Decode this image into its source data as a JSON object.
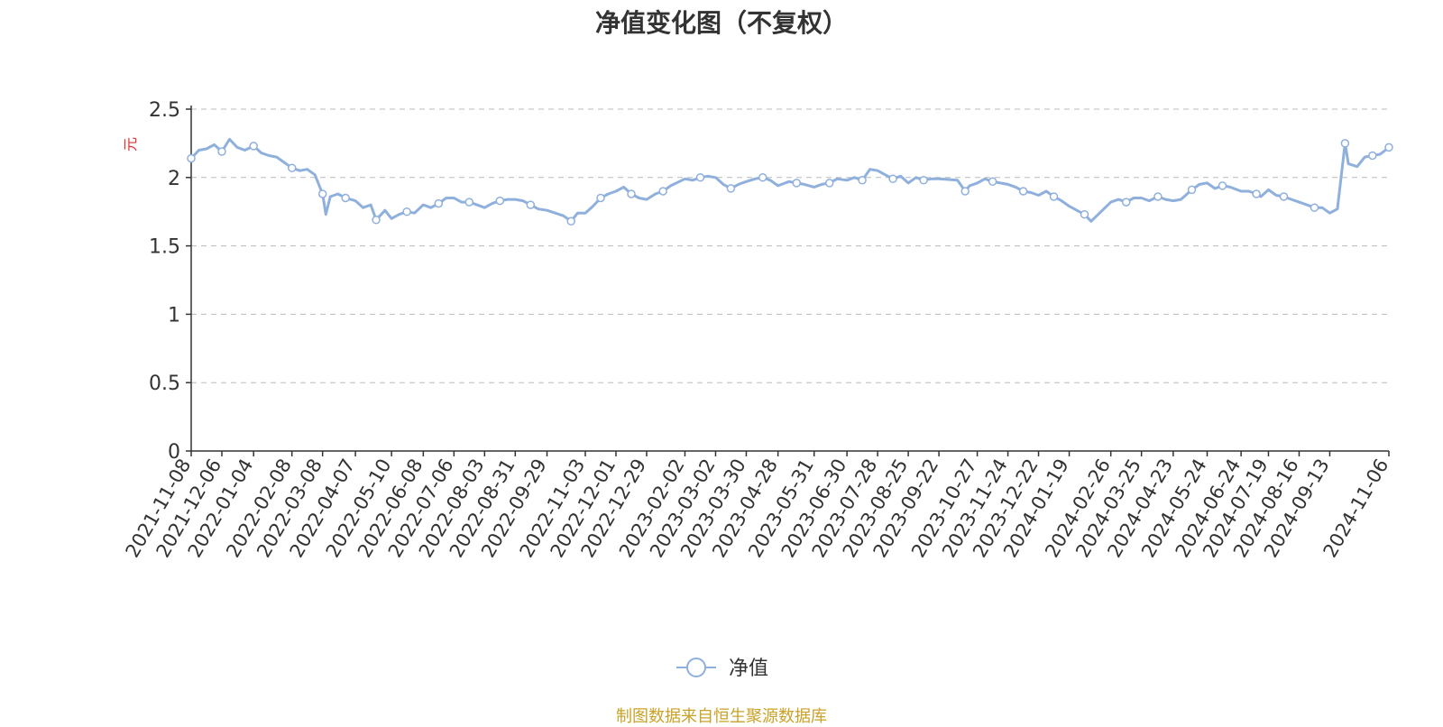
{
  "chart_data": {
    "type": "line",
    "title": "净值变化图（不复权）",
    "ylabel": "元",
    "ylim": [
      0,
      2.5
    ],
    "yticks": [
      "0",
      "0.5",
      "1",
      "1.5",
      "2",
      "2.5"
    ],
    "grid": true,
    "legend_position": "bottom-center",
    "x_tick_labels": [
      "2021-11-08",
      "2021-12-06",
      "2022-01-04",
      "2022-02-08",
      "2022-03-08",
      "2022-04-07",
      "2022-05-10",
      "2022-06-08",
      "2022-07-06",
      "2022-08-03",
      "2022-08-31",
      "2022-09-29",
      "2022-11-03",
      "2022-12-01",
      "2022-12-29",
      "2023-02-02",
      "2023-03-02",
      "2023-03-30",
      "2023-04-28",
      "2023-05-31",
      "2023-06-30",
      "2023-07-28",
      "2023-08-25",
      "2023-09-22",
      "2023-10-27",
      "2023-11-24",
      "2023-12-22",
      "2024-01-19",
      "2024-02-26",
      "2024-03-25",
      "2024-04-23",
      "2024-05-24",
      "2024-06-24",
      "2024-07-19",
      "2024-08-16",
      "2024-09-13",
      "2024-11-06"
    ],
    "series": [
      {
        "name": "净值",
        "color": "#8fb0dc",
        "x": [
          "2021-11-08",
          "2021-11-15",
          "2021-11-22",
          "2021-11-29",
          "2021-12-06",
          "2021-12-13",
          "2021-12-20",
          "2021-12-27",
          "2022-01-04",
          "2022-01-11",
          "2022-01-18",
          "2022-01-25",
          "2022-02-08",
          "2022-02-15",
          "2022-02-22",
          "2022-03-01",
          "2022-03-08",
          "2022-03-11",
          "2022-03-15",
          "2022-03-22",
          "2022-03-29",
          "2022-04-07",
          "2022-04-14",
          "2022-04-21",
          "2022-04-26",
          "2022-05-04",
          "2022-05-10",
          "2022-05-17",
          "2022-05-24",
          "2022-05-31",
          "2022-06-08",
          "2022-06-15",
          "2022-06-22",
          "2022-06-29",
          "2022-07-06",
          "2022-07-13",
          "2022-07-20",
          "2022-07-27",
          "2022-08-03",
          "2022-08-10",
          "2022-08-17",
          "2022-08-24",
          "2022-08-31",
          "2022-09-07",
          "2022-09-14",
          "2022-09-21",
          "2022-09-29",
          "2022-10-14",
          "2022-10-21",
          "2022-10-27",
          "2022-11-03",
          "2022-11-10",
          "2022-11-17",
          "2022-11-24",
          "2022-12-01",
          "2022-12-08",
          "2022-12-15",
          "2022-12-22",
          "2022-12-29",
          "2023-01-06",
          "2023-01-13",
          "2023-01-20",
          "2023-02-02",
          "2023-02-09",
          "2023-02-16",
          "2023-02-23",
          "2023-03-02",
          "2023-03-09",
          "2023-03-16",
          "2023-03-23",
          "2023-03-30",
          "2023-04-07",
          "2023-04-14",
          "2023-04-21",
          "2023-04-28",
          "2023-05-08",
          "2023-05-15",
          "2023-05-22",
          "2023-05-31",
          "2023-06-07",
          "2023-06-14",
          "2023-06-21",
          "2023-06-30",
          "2023-07-07",
          "2023-07-14",
          "2023-07-21",
          "2023-07-28",
          "2023-08-04",
          "2023-08-11",
          "2023-08-18",
          "2023-08-25",
          "2023-09-01",
          "2023-09-08",
          "2023-09-15",
          "2023-09-22",
          "2023-10-09",
          "2023-10-16",
          "2023-10-20",
          "2023-10-27",
          "2023-11-03",
          "2023-11-10",
          "2023-11-17",
          "2023-11-24",
          "2023-12-01",
          "2023-12-08",
          "2023-12-15",
          "2023-12-22",
          "2023-12-29",
          "2024-01-05",
          "2024-01-12",
          "2024-01-19",
          "2024-01-26",
          "2024-02-02",
          "2024-02-08",
          "2024-02-26",
          "2024-03-04",
          "2024-03-11",
          "2024-03-18",
          "2024-03-25",
          "2024-04-01",
          "2024-04-09",
          "2024-04-16",
          "2024-04-23",
          "2024-04-30",
          "2024-05-10",
          "2024-05-17",
          "2024-05-24",
          "2024-05-31",
          "2024-06-07",
          "2024-06-14",
          "2024-06-24",
          "2024-07-01",
          "2024-07-08",
          "2024-07-12",
          "2024-07-19",
          "2024-07-26",
          "2024-08-02",
          "2024-08-09",
          "2024-08-16",
          "2024-08-23",
          "2024-08-30",
          "2024-09-06",
          "2024-09-13",
          "2024-09-20",
          "2024-09-27",
          "2024-09-30",
          "2024-10-08",
          "2024-10-15",
          "2024-10-22",
          "2024-10-29",
          "2024-11-06"
        ],
        "values": [
          2.14,
          2.2,
          2.21,
          2.24,
          2.19,
          2.28,
          2.22,
          2.2,
          2.23,
          2.18,
          2.16,
          2.15,
          2.07,
          2.05,
          2.06,
          2.02,
          1.88,
          1.73,
          1.86,
          1.88,
          1.85,
          1.83,
          1.78,
          1.8,
          1.69,
          1.76,
          1.7,
          1.73,
          1.75,
          1.74,
          1.8,
          1.78,
          1.81,
          1.85,
          1.85,
          1.82,
          1.82,
          1.8,
          1.78,
          1.81,
          1.83,
          1.84,
          1.84,
          1.83,
          1.8,
          1.77,
          1.76,
          1.72,
          1.68,
          1.74,
          1.74,
          1.79,
          1.85,
          1.88,
          1.9,
          1.93,
          1.88,
          1.85,
          1.84,
          1.88,
          1.9,
          1.94,
          1.99,
          1.98,
          2.0,
          2.01,
          2.0,
          1.95,
          1.92,
          1.95,
          1.97,
          1.99,
          2.0,
          1.98,
          1.94,
          1.97,
          1.96,
          1.95,
          1.93,
          1.95,
          1.96,
          1.99,
          1.98,
          2.0,
          1.98,
          2.06,
          2.05,
          2.02,
          1.99,
          2.01,
          1.96,
          2.0,
          1.98,
          1.99,
          1.99,
          1.98,
          1.9,
          1.94,
          1.96,
          1.99,
          1.97,
          1.96,
          1.95,
          1.93,
          1.9,
          1.89,
          1.87,
          1.9,
          1.86,
          1.83,
          1.79,
          1.76,
          1.73,
          1.68,
          1.82,
          1.84,
          1.82,
          1.85,
          1.85,
          1.83,
          1.86,
          1.84,
          1.83,
          1.84,
          1.91,
          1.95,
          1.96,
          1.92,
          1.94,
          1.93,
          1.9,
          1.9,
          1.88,
          1.86,
          1.91,
          1.87,
          1.86,
          1.84,
          1.82,
          1.8,
          1.78,
          1.78,
          1.74,
          1.77,
          2.25,
          2.1,
          2.08,
          2.15,
          2.16,
          2.17,
          2.22
        ]
      }
    ],
    "source_note": "制图数据来自恒生聚源数据库"
  }
}
